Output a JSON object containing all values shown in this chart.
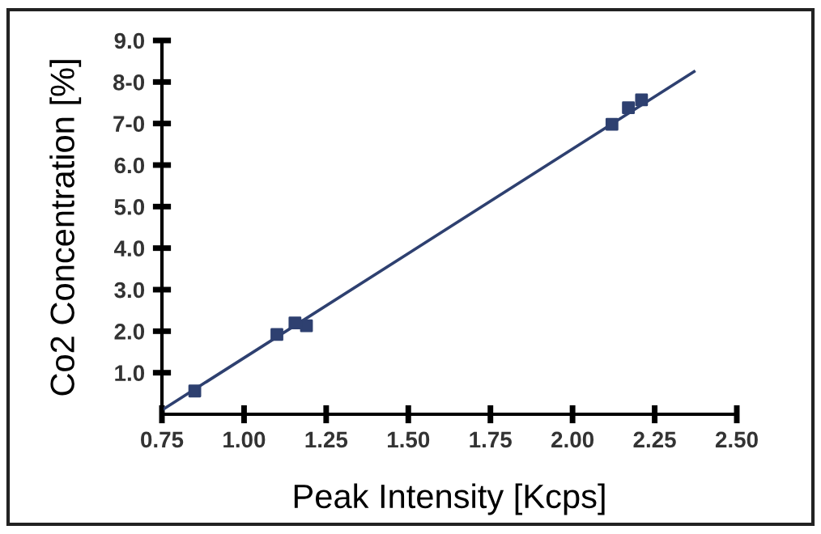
{
  "chart_data": {
    "type": "scatter",
    "xlabel": "Peak Intensity [Kcps]",
    "ylabel": "Co2 Concentration [%]",
    "xlim": [
      0.75,
      2.5
    ],
    "xticks": [
      {
        "value": 0.75,
        "label": "0.75"
      },
      {
        "value": 1.0,
        "label": "1.00"
      },
      {
        "value": 1.25,
        "label": "1.25"
      },
      {
        "value": 1.5,
        "label": "1.50"
      },
      {
        "value": 1.75,
        "label": "1.75"
      },
      {
        "value": 2.0,
        "label": "2.00"
      },
      {
        "value": 2.25,
        "label": "2.25"
      },
      {
        "value": 2.5,
        "label": "2.50"
      }
    ],
    "ylim": [
      0,
      9
    ],
    "yticks": [
      {
        "value": 1,
        "label": "1.0"
      },
      {
        "value": 2,
        "label": "2.0"
      },
      {
        "value": 3,
        "label": "3.0"
      },
      {
        "value": 4,
        "label": "4.0"
      },
      {
        "value": 5,
        "label": "5.0"
      },
      {
        "value": 6,
        "label": "6.0"
      },
      {
        "value": 7,
        "label": "7-0"
      },
      {
        "value": 8,
        "label": "8-0"
      },
      {
        "value": 9,
        "label": "9.0"
      }
    ],
    "grid": false,
    "series": [
      {
        "color": "#2e4070",
        "marker": "square",
        "x": [
          0.85,
          1.1,
          1.155,
          1.19,
          2.12,
          2.17,
          2.21
        ],
        "values": [
          0.56,
          1.92,
          2.2,
          2.13,
          6.98,
          7.38,
          7.57
        ]
      },
      {
        "type": "line",
        "color": "#2e4070",
        "marker": "none",
        "x": [
          0.75,
          2.37
        ],
        "values": [
          0.1,
          8.25
        ],
        "line_style": "solid"
      }
    ]
  }
}
